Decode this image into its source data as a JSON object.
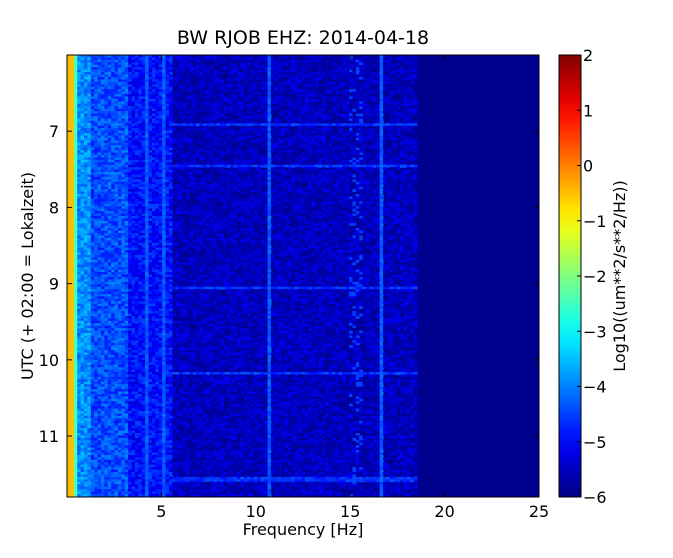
{
  "chart_data": {
    "type": "heatmap",
    "title": "BW RJOB EHZ: 2014-04-18",
    "xlabel": "Frequency [Hz]",
    "ylabel": "UTC (+ 02:00 = Lokalzeit)",
    "xlim": [
      0,
      25
    ],
    "ylim": [
      11.8,
      6.0
    ],
    "x_ticks": [
      5,
      10,
      15,
      20,
      25
    ],
    "y_ticks": [
      7,
      8,
      9,
      10,
      11
    ],
    "colorbar": {
      "label": "Log10((um**2/s**2/Hz))",
      "range": [
        -6,
        2
      ],
      "ticks": [
        2,
        1,
        0,
        -1,
        -2,
        -3,
        -4,
        -5,
        -6
      ],
      "colormap": "jet"
    },
    "heatmap_features": {
      "background_value": -6,
      "low_frequency_ridge": {
        "x": 0.15,
        "value": -0.5
      },
      "low_frequency_band": {
        "x_range": [
          0.3,
          5.5
        ],
        "value": -4.6
      },
      "vertical_lines_hz": [
        4.1,
        5.0,
        10.6,
        16.6
      ],
      "horizontal_lines_utc": [
        6.9,
        7.45,
        9.05,
        10.15,
        11.55
      ],
      "broadband_region": {
        "x_range": [
          5.5,
          18.5
        ],
        "value": -5.4
      }
    }
  }
}
